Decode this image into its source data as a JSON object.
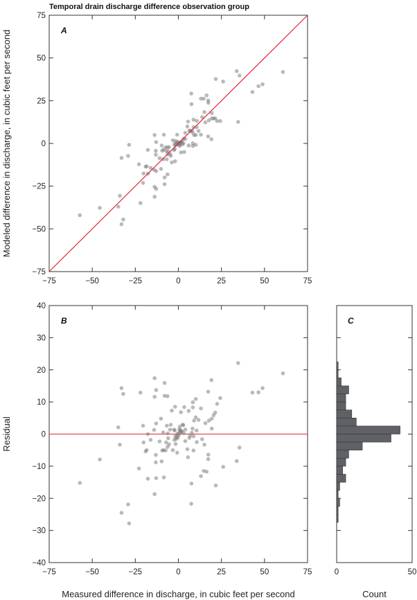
{
  "title": "Temporal drain discharge difference observation group",
  "chart_data": [
    {
      "panel": "A",
      "type": "scatter",
      "xlabel": "",
      "ylabel": "Modeled difference in discharge, in cubic feet per second",
      "xlim": [
        -75,
        75
      ],
      "ylim": [
        -75,
        75
      ],
      "xticks": [
        "-75",
        "-25",
        "0",
        "25",
        "50",
        "75"
      ],
      "xtick_values": [
        -75,
        -25,
        0,
        25,
        50,
        75
      ],
      "xticks_full": [
        "−75",
        "−50",
        "−25",
        "0",
        "25",
        "50",
        "75"
      ],
      "xtick_full_values": [
        -75,
        -50,
        -25,
        0,
        25,
        50,
        75
      ],
      "yticks": [
        "75",
        "50",
        "25",
        "0",
        "−25",
        "−50",
        "−75"
      ],
      "ytick_values": [
        75,
        50,
        25,
        0,
        -25,
        -50,
        -75
      ],
      "reference_line": "1:1 line",
      "line_color": "#e3262f",
      "point_color": "#7f7f7f",
      "points": [
        [
          33.9,
          42.3
        ],
        [
          35.5,
          39.7
        ],
        [
          60.7,
          41.8
        ],
        [
          21.7,
          37.7
        ],
        [
          26,
          36.2
        ],
        [
          48.9,
          34.6
        ],
        [
          46.5,
          33.5
        ],
        [
          43,
          30.1
        ],
        [
          7.5,
          29.2
        ],
        [
          16.4,
          28.1
        ],
        [
          13.1,
          26.2
        ],
        [
          14.7,
          26.2
        ],
        [
          17.3,
          25.1
        ],
        [
          17.4,
          23.8
        ],
        [
          7.6,
          23
        ],
        [
          15.1,
          18.4
        ],
        [
          19.4,
          17.7
        ],
        [
          13.8,
          15.4
        ],
        [
          19.4,
          14.6
        ],
        [
          20.5,
          14.6
        ],
        [
          21.4,
          14.7
        ],
        [
          17.7,
          13.5
        ],
        [
          22.5,
          13.1
        ],
        [
          24.3,
          13.1
        ],
        [
          15.7,
          12.3
        ],
        [
          34.7,
          12.6
        ],
        [
          5.6,
          12.8
        ],
        [
          8.8,
          13.9
        ],
        [
          10.7,
          13.2
        ],
        [
          5.2,
          9.9
        ],
        [
          8.8,
          9.5
        ],
        [
          10.6,
          9.5
        ],
        [
          6.8,
          7.3
        ],
        [
          7.8,
          7.4
        ],
        [
          6.4,
          7.6
        ],
        [
          11.7,
          7.3
        ],
        [
          4,
          6.2
        ],
        [
          8.2,
          6.5
        ],
        [
          9.1,
          4.9
        ],
        [
          10.1,
          4.9
        ],
        [
          13.1,
          5.1
        ],
        [
          17.3,
          4.1
        ],
        [
          19.2,
          2.4
        ],
        [
          -0.7,
          5.1
        ],
        [
          -8.4,
          5.1
        ],
        [
          -13.8,
          4.9
        ],
        [
          3.1,
          2.8
        ],
        [
          4,
          2.6
        ],
        [
          -3.2,
          1.8
        ],
        [
          -1.6,
          1.5
        ],
        [
          -0.3,
          0.8
        ],
        [
          0.4,
          0.1
        ],
        [
          1.1,
          -0.1
        ],
        [
          -0.9,
          -0.1
        ],
        [
          1.7,
          0.8
        ],
        [
          2.4,
          -0.5
        ],
        [
          0.8,
          -1.5
        ],
        [
          -2.3,
          -0.5
        ],
        [
          -12.9,
          0.8
        ],
        [
          -28.6,
          -0.8
        ],
        [
          -9.7,
          -1.2
        ],
        [
          6,
          -1.2
        ],
        [
          8.4,
          0.1
        ],
        [
          8.4,
          -1.5
        ],
        [
          10.1,
          -0.8
        ],
        [
          2.9,
          0.1
        ],
        [
          -5.4,
          -2.2
        ],
        [
          -6.3,
          -2.3
        ],
        [
          -7.4,
          -2.3
        ],
        [
          -17.7,
          -3.8
        ],
        [
          -13.1,
          -4.3
        ],
        [
          -8.6,
          -3.6
        ],
        [
          -9.4,
          -4.3
        ],
        [
          -7.1,
          -4.5
        ],
        [
          -5.9,
          -4.6
        ],
        [
          -2.5,
          -3.9
        ],
        [
          -2.1,
          -3.2
        ],
        [
          1.5,
          -5.3
        ],
        [
          3.4,
          -5
        ],
        [
          -13.1,
          -6.6
        ],
        [
          -6.2,
          -6.4
        ],
        [
          -4.8,
          -6.2
        ],
        [
          -10.9,
          -8.6
        ],
        [
          -8.8,
          -9.3
        ],
        [
          -6.7,
          -9.3
        ],
        [
          -4.4,
          -7.3
        ],
        [
          -33,
          -8.5
        ],
        [
          -29.2,
          -7.3
        ],
        [
          -1.9,
          -10.4
        ],
        [
          -3.8,
          -11.1
        ],
        [
          -22.9,
          -12.2
        ],
        [
          -19,
          -13.6
        ],
        [
          -18.4,
          -13.4
        ],
        [
          -16.1,
          -14.3
        ],
        [
          -14.1,
          -15.4
        ],
        [
          -12.9,
          -16.2
        ],
        [
          -10.1,
          -14.9
        ],
        [
          -20.2,
          -17.6
        ],
        [
          -17.7,
          -17.7
        ],
        [
          -6.3,
          -18.1
        ],
        [
          -8,
          -19.9
        ],
        [
          -20.5,
          -23.1
        ],
        [
          -8,
          -23.9
        ],
        [
          -13.8,
          -25.4
        ],
        [
          -12.9,
          -26.6
        ],
        [
          -34,
          -30.7
        ],
        [
          -13.8,
          -31.2
        ],
        [
          -34.9,
          -37
        ],
        [
          -22,
          -34.9
        ],
        [
          -45.6,
          -37.7
        ],
        [
          -57.2,
          -42
        ],
        [
          -32,
          -44.5
        ],
        [
          -33,
          -47.3
        ],
        [
          0.2,
          0.5
        ],
        [
          -0.5,
          -0.6
        ],
        [
          1.3,
          0.6
        ],
        [
          -1.2,
          0.3
        ],
        [
          0.6,
          -0.8
        ],
        [
          2,
          1.2
        ],
        [
          -1.8,
          -1.1
        ]
      ]
    },
    {
      "panel": "B",
      "type": "scatter",
      "xlabel": "Measured difference in discharge, in cubic feet per second",
      "ylabel": "Residual",
      "residual_definition": "measured minus modeled",
      "xlim": [
        -75,
        75
      ],
      "ylim": [
        -40,
        40
      ],
      "xticks": [
        "−75",
        "−50",
        "−25",
        "0",
        "25",
        "50",
        "75"
      ],
      "xtick_values": [
        -75,
        -50,
        -25,
        0,
        25,
        50,
        75
      ],
      "yticks": [
        "40",
        "30",
        "20",
        "10",
        "0",
        "−10",
        "−20",
        "−30",
        "−40"
      ],
      "ytick_values": [
        40,
        30,
        20,
        10,
        0,
        -10,
        -20,
        -30,
        -40
      ],
      "reference_line": "zero line"
    },
    {
      "panel": "C",
      "type": "bar",
      "orientation": "horizontal",
      "xlabel": "Count",
      "xlim": [
        0,
        50
      ],
      "xticks": [
        "0",
        "50"
      ],
      "xtick_values": [
        0,
        50
      ],
      "bar_color": "#5f6166",
      "bins": [
        [
          20,
          22.5
        ],
        [
          17.5,
          20
        ],
        [
          15,
          17.5
        ],
        [
          12.5,
          15
        ],
        [
          10,
          12.5
        ],
        [
          7.5,
          10
        ],
        [
          5,
          7.5
        ],
        [
          2.5,
          5
        ],
        [
          0,
          2.5
        ],
        [
          -2.5,
          0
        ],
        [
          -5,
          -2.5
        ],
        [
          -7.5,
          -5
        ],
        [
          -10,
          -7.5
        ],
        [
          -12.5,
          -10
        ],
        [
          -15,
          -12.5
        ],
        [
          -17.5,
          -15
        ],
        [
          -20,
          -17.5
        ],
        [
          -22.5,
          -20
        ],
        [
          -25,
          -22.5
        ],
        [
          -27.5,
          -25
        ]
      ],
      "counts": [
        1,
        1,
        3,
        8,
        6,
        6,
        10,
        13,
        42,
        36,
        17,
        8,
        6,
        4,
        6,
        2,
        1,
        2,
        1,
        1
      ]
    }
  ],
  "panel_labels": [
    "A",
    "B",
    "C"
  ]
}
